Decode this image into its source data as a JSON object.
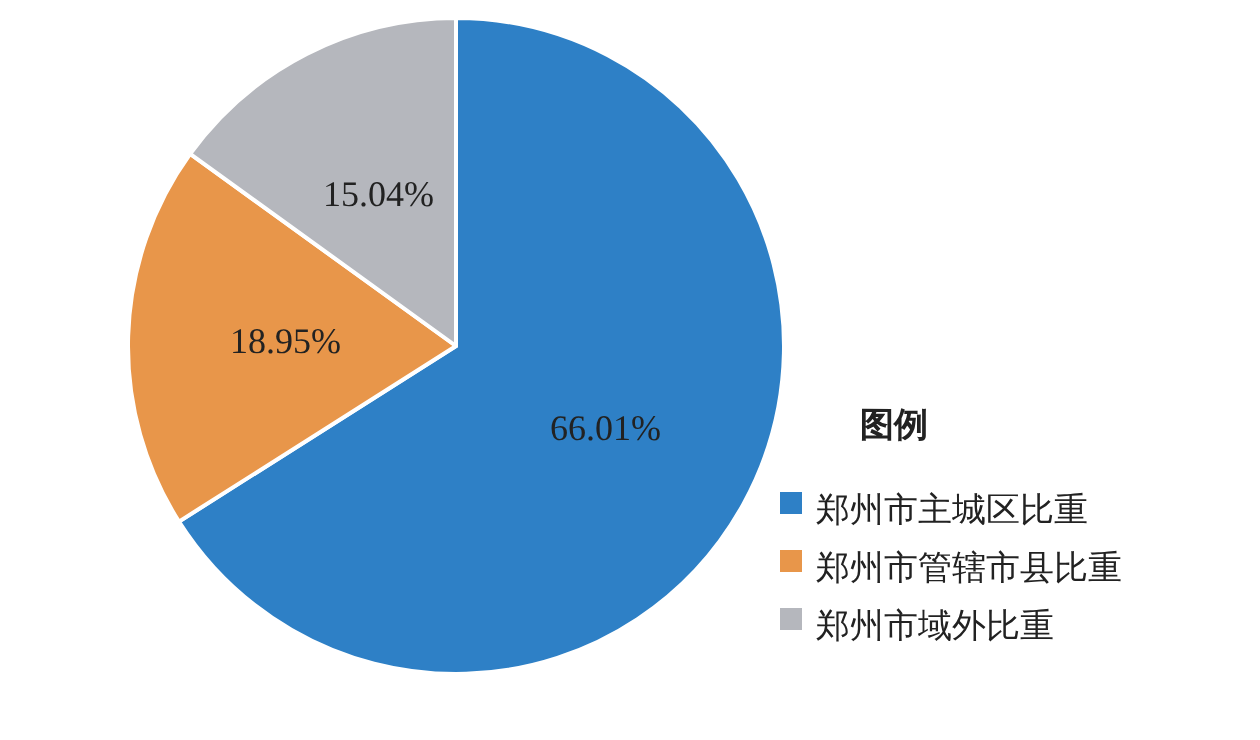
{
  "chart_data": {
    "type": "pie",
    "categories": [
      "郑州市主城区比重",
      "郑州市管辖市县比重",
      "郑州市域外比重"
    ],
    "values": [
      66.01,
      18.95,
      15.04
    ],
    "value_labels": [
      "66.01%",
      "18.95%",
      "15.04%"
    ],
    "colors": [
      "#2e80c6",
      "#e8964a",
      "#b5b7bd"
    ],
    "legend_title": "图例",
    "legend": "right"
  }
}
